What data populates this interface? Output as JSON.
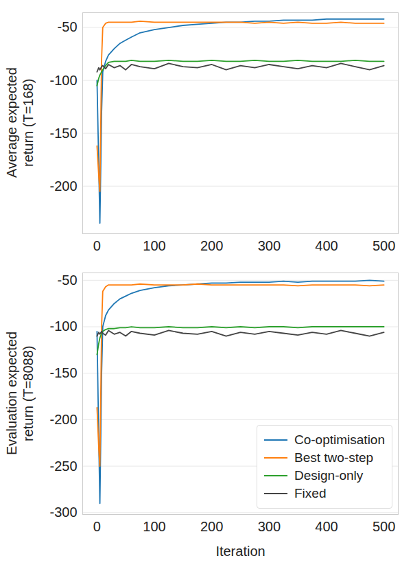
{
  "chart_data": [
    {
      "type": "line",
      "y_label": "Average expected return (T=168)",
      "x": [
        0,
        3,
        5,
        8,
        10,
        15,
        20,
        30,
        40,
        50,
        60,
        75,
        100,
        125,
        150,
        175,
        200,
        225,
        250,
        275,
        300,
        325,
        350,
        375,
        400,
        425,
        450,
        475,
        500
      ],
      "xlim": [
        -25,
        525
      ],
      "xticks": [
        0,
        100,
        200,
        300,
        400,
        500
      ],
      "ylim": [
        -245,
        -36
      ],
      "yticks": [
        -200,
        -150,
        -100,
        -50
      ],
      "grid": true,
      "series": [
        {
          "name": "Co-optimisation",
          "color": "#1f77b4",
          "values": [
            -100,
            -180,
            -235,
            -130,
            -92,
            -82,
            -76,
            -70,
            -65,
            -62,
            -59,
            -55,
            -52,
            -50,
            -48,
            -47,
            -46,
            -45,
            -45,
            -44,
            -44,
            -43,
            -43,
            -43,
            -42,
            -42,
            -42,
            -42,
            -42
          ]
        },
        {
          "name": "Best two-step",
          "color": "#ff7f0e",
          "values": [
            -162,
            -190,
            -205,
            -80,
            -50,
            -46,
            -45,
            -45,
            -45,
            -45,
            -45,
            -44,
            -45,
            -45,
            -45,
            -45,
            -45,
            -45,
            -45,
            -46,
            -45,
            -46,
            -45,
            -46,
            -46,
            -45,
            -46,
            -46,
            -46
          ]
        },
        {
          "name": "Design-only",
          "color": "#2ca02c",
          "values": [
            -105,
            -98,
            -95,
            -92,
            -90,
            -86,
            -83,
            -82,
            -82,
            -82,
            -81,
            -82,
            -82,
            -81,
            -82,
            -82,
            -81,
            -82,
            -82,
            -81,
            -82,
            -82,
            -81,
            -82,
            -82,
            -82,
            -81,
            -82,
            -82
          ]
        },
        {
          "name": "Fixed",
          "color": "#444444",
          "values": [
            -92,
            -88,
            -90,
            -87,
            -86,
            -89,
            -85,
            -88,
            -86,
            -90,
            -85,
            -87,
            -89,
            -84,
            -87,
            -88,
            -85,
            -90,
            -86,
            -88,
            -85,
            -87,
            -89,
            -86,
            -88,
            -84,
            -87,
            -90,
            -86
          ]
        }
      ]
    },
    {
      "type": "line",
      "y_label": "Evaluation expected return (T=8088)",
      "x_label": "Iteration",
      "x": [
        0,
        3,
        5,
        8,
        10,
        15,
        20,
        30,
        40,
        50,
        60,
        75,
        100,
        125,
        150,
        175,
        200,
        225,
        250,
        275,
        300,
        325,
        350,
        375,
        400,
        425,
        450,
        475,
        500
      ],
      "xlim": [
        -25,
        525
      ],
      "xticks": [
        0,
        100,
        200,
        300,
        400,
        500
      ],
      "ylim": [
        -302,
        -42
      ],
      "yticks": [
        -300,
        -250,
        -200,
        -150,
        -100,
        -50
      ],
      "grid": true,
      "legend": "lower right",
      "series": [
        {
          "name": "Co-optimisation",
          "color": "#1f77b4",
          "values": [
            -105,
            -220,
            -290,
            -150,
            -100,
            -88,
            -82,
            -75,
            -70,
            -67,
            -64,
            -61,
            -58,
            -56,
            -55,
            -54,
            -53,
            -53,
            -52,
            -52,
            -52,
            -51,
            -52,
            -51,
            -51,
            -51,
            -51,
            -50,
            -51
          ]
        },
        {
          "name": "Best two-step",
          "color": "#ff7f0e",
          "values": [
            -187,
            -230,
            -250,
            -100,
            -62,
            -57,
            -55,
            -55,
            -55,
            -55,
            -55,
            -54,
            -55,
            -55,
            -55,
            -54,
            -55,
            -55,
            -55,
            -55,
            -55,
            -55,
            -56,
            -55,
            -55,
            -55,
            -55,
            -56,
            -55
          ]
        },
        {
          "name": "Design-only",
          "color": "#2ca02c",
          "values": [
            -130,
            -118,
            -112,
            -107,
            -105,
            -103,
            -102,
            -102,
            -101,
            -101,
            -100,
            -101,
            -101,
            -100,
            -101,
            -101,
            -100,
            -101,
            -100,
            -101,
            -100,
            -100,
            -101,
            -100,
            -100,
            -100,
            -100,
            -100,
            -100
          ]
        },
        {
          "name": "Fixed",
          "color": "#444444",
          "values": [
            -110,
            -106,
            -108,
            -105,
            -107,
            -109,
            -104,
            -108,
            -106,
            -110,
            -105,
            -107,
            -109,
            -104,
            -107,
            -108,
            -105,
            -110,
            -106,
            -108,
            -105,
            -107,
            -109,
            -106,
            -108,
            -104,
            -107,
            -110,
            -106
          ]
        }
      ]
    }
  ]
}
